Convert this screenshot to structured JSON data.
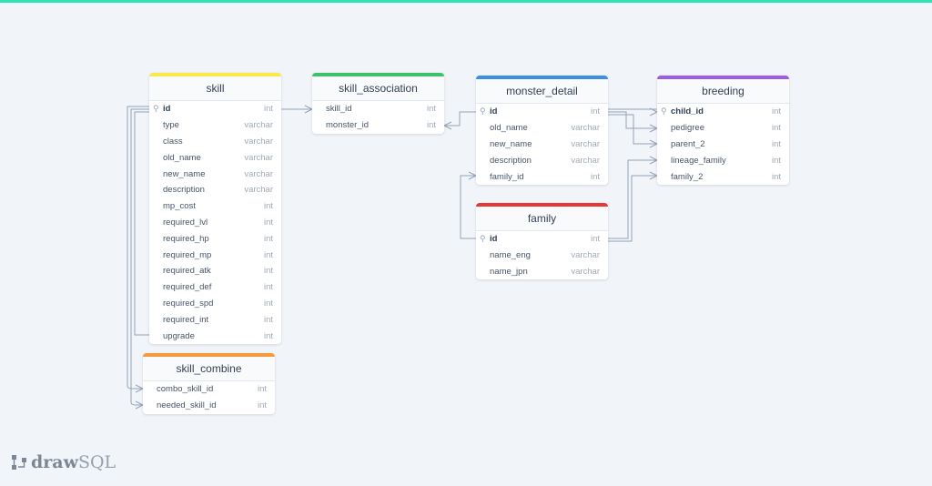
{
  "colors": {
    "accent_top": "#2de3b0",
    "skill": "#fce84a",
    "skill_association": "#3cc26a",
    "monster_detail": "#3b8fe0",
    "breeding": "#9b5de5",
    "family": "#e53935",
    "skill_combine": "#f59a3c"
  },
  "tables": [
    {
      "name": "skill",
      "color": "#fce84a",
      "cols": [
        [
          "id",
          "int",
          true
        ],
        [
          "type",
          "varchar"
        ],
        [
          "class",
          "varchar"
        ],
        [
          "old_name",
          "varchar"
        ],
        [
          "new_name",
          "varchar"
        ],
        [
          "description",
          "varchar"
        ],
        [
          "mp_cost",
          "int"
        ],
        [
          "required_lvl",
          "int"
        ],
        [
          "required_hp",
          "int"
        ],
        [
          "required_mp",
          "int"
        ],
        [
          "required_atk",
          "int"
        ],
        [
          "required_def",
          "int"
        ],
        [
          "required_spd",
          "int"
        ],
        [
          "required_int",
          "int"
        ],
        [
          "upgrade",
          "int"
        ]
      ]
    },
    {
      "name": "skill_association",
      "color": "#3cc26a",
      "cols": [
        [
          "skill_id",
          "int"
        ],
        [
          "monster_id",
          "int"
        ]
      ]
    },
    {
      "name": "monster_detail",
      "color": "#3b8fe0",
      "cols": [
        [
          "id",
          "int",
          true
        ],
        [
          "old_name",
          "varchar"
        ],
        [
          "new_name",
          "varchar"
        ],
        [
          "description",
          "varchar"
        ],
        [
          "family_id",
          "int"
        ]
      ]
    },
    {
      "name": "breeding",
      "color": "#9b5de5",
      "cols": [
        [
          "child_id",
          "int",
          true
        ],
        [
          "pedigree",
          "int"
        ],
        [
          "parent_2",
          "int"
        ],
        [
          "lineage_family",
          "int"
        ],
        [
          "family_2",
          "int"
        ]
      ]
    },
    {
      "name": "family",
      "color": "#e53935",
      "cols": [
        [
          "id",
          "int",
          true
        ],
        [
          "name_eng",
          "varchar"
        ],
        [
          "name_jpn",
          "varchar"
        ]
      ]
    },
    {
      "name": "skill_combine",
      "color": "#f59a3c",
      "cols": [
        [
          "combo_skill_id",
          "int"
        ],
        [
          "needed_skill_id",
          "int"
        ]
      ]
    }
  ],
  "logo": {
    "bold": "draw",
    "light": "SQL"
  }
}
